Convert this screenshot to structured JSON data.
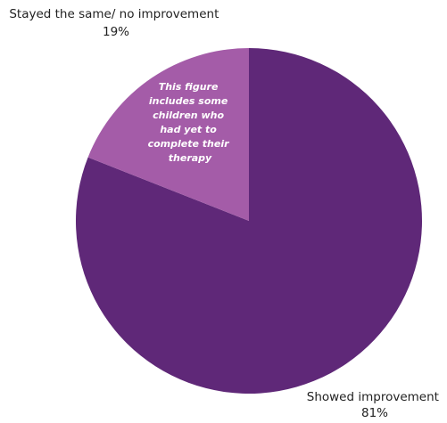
{
  "chart_data": {
    "type": "pie",
    "title": "",
    "slices": [
      {
        "label": "Showed improvement",
        "value": 81,
        "value_label": "81%",
        "color": "#5f2878"
      },
      {
        "label": "Stayed the same/ no improvement",
        "value": 19,
        "value_label": "19%",
        "color": "#a45ca8"
      }
    ],
    "annotation": {
      "lines": [
        "This figure",
        "includes some",
        "children who",
        "had yet to",
        "complete their",
        "therapy"
      ]
    },
    "slice_order": "clockwise from 12 o'clock",
    "legend": "none"
  }
}
